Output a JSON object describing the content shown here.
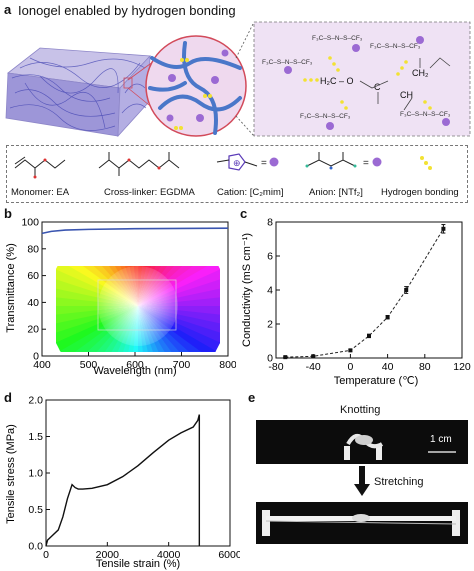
{
  "panel_a": {
    "label": "a",
    "title": "Ionogel enabled by hydrogen bonding",
    "legend": {
      "monomer": "Monomer: EA",
      "crosslinker": "Cross-linker: EGDMA",
      "cation": "Cation: [C₂mim]",
      "anion": "Anion: [NTf₂]",
      "hbond": "Hydrogen bonding"
    },
    "chem_labels": {
      "anion_formula": "F₃C–S–N–S–CF₃",
      "h2c_o": "H₂C – O",
      "ch2": "CH₂",
      "ch": "CH",
      "c": "C"
    },
    "colors": {
      "network": "#4a77c9",
      "hbond": "#f2e233",
      "sphere": "#9b6ad3",
      "zoom_bg": "#efe2f4"
    }
  },
  "panel_b": {
    "label": "b",
    "chart_data": {
      "type": "line",
      "xlabel": "Wavelength (nm)",
      "ylabel": "Transmittance (%)",
      "xlim": [
        400,
        800
      ],
      "ylim": [
        0,
        100
      ],
      "xticks": [
        400,
        500,
        600,
        700,
        800
      ],
      "yticks": [
        0,
        20,
        40,
        60,
        80,
        100
      ],
      "series": [
        {
          "x": [
            400,
            420,
            450,
            500,
            600,
            700,
            800
          ],
          "y": [
            91.5,
            93.0,
            94.0,
            94.5,
            95.0,
            95.2,
            95.4
          ]
        }
      ],
      "line_color": "#3a55b0"
    }
  },
  "panel_c": {
    "label": "c",
    "chart_data": {
      "type": "scatter",
      "xlabel": "Temperature (℃)",
      "ylabel": "Conductivity (mS cm⁻¹)",
      "xlim": [
        -80,
        120
      ],
      "ylim": [
        0,
        8
      ],
      "xticks": [
        -80,
        -40,
        0,
        40,
        80,
        120
      ],
      "yticks": [
        0,
        2,
        4,
        6,
        8
      ],
      "series": [
        {
          "x": [
            -70,
            -40,
            0,
            20,
            40,
            60,
            100
          ],
          "y": [
            0.05,
            0.1,
            0.45,
            1.3,
            2.4,
            4.0,
            7.6
          ],
          "err": [
            0.02,
            0.03,
            0.05,
            0.1,
            0.1,
            0.2,
            0.25
          ]
        }
      ]
    }
  },
  "panel_d": {
    "label": "d",
    "chart_data": {
      "type": "line",
      "xlabel": "Tensile strain (%)",
      "ylabel": "Tensile stress (MPa)",
      "xlim": [
        0,
        6000
      ],
      "ylim": [
        0,
        2.0
      ],
      "xticks": [
        0,
        2000,
        4000,
        6000
      ],
      "yticks": [
        0.0,
        0.5,
        1.0,
        1.5,
        2.0
      ],
      "yticklabels": [
        "0.0",
        "0.5",
        "1.0",
        "1.5",
        "2.0"
      ],
      "series": [
        {
          "x": [
            0,
            50,
            200,
            400,
            550,
            700,
            850,
            950,
            1050,
            1200,
            1500,
            2000,
            2500,
            3000,
            3500,
            4000,
            4400,
            4800,
            4950,
            5000,
            5000
          ],
          "y": [
            0,
            0.08,
            0.14,
            0.22,
            0.4,
            0.65,
            0.84,
            0.8,
            0.78,
            0.78,
            0.79,
            0.84,
            0.95,
            1.1,
            1.28,
            1.45,
            1.55,
            1.63,
            1.72,
            1.8,
            0.0
          ]
        }
      ]
    }
  },
  "panel_e": {
    "label": "e",
    "knotting": "Knotting",
    "stretching": "Stretching",
    "scale_bar": "1 cm"
  }
}
